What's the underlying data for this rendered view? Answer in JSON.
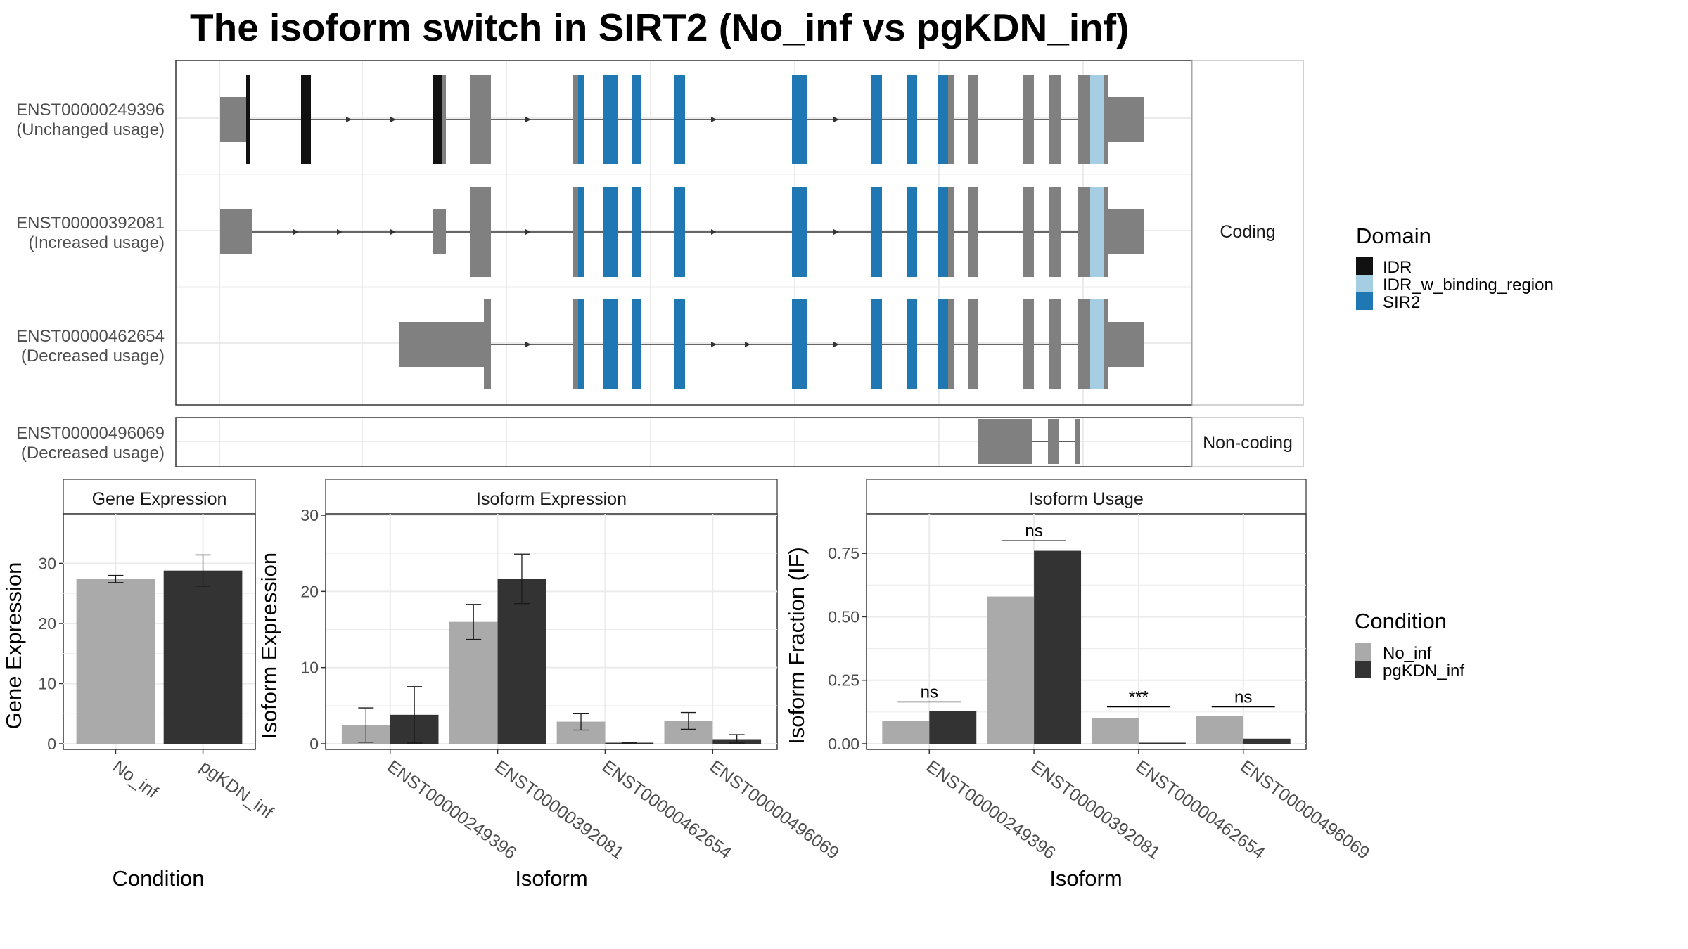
{
  "title": "The isoform switch in SIRT2 (No_inf vs pgKDN_inf)",
  "colors": {
    "exon": "#808080",
    "IDR": "#111111",
    "IDR_w_binding_region": "#a6cee3",
    "SIR2": "#1f78b4",
    "No_inf": "#aaaaaa",
    "pgKDN_inf": "#333333",
    "grid": "#ebebeb"
  },
  "transcripts": {
    "strips": {
      "coding": "Coding",
      "noncoding": "Non-coding"
    },
    "rows": [
      {
        "id": "ENST00000249396",
        "usage": "(Unchanged usage)",
        "group": "coding"
      },
      {
        "id": "ENST00000392081",
        "usage": "(Increased usage)",
        "group": "coding"
      },
      {
        "id": "ENST00000462654",
        "usage": "(Decreased usage)",
        "group": "coding"
      },
      {
        "id": "ENST00000496069",
        "usage": "(Decreased usage)",
        "group": "noncoding"
      }
    ]
  },
  "domain_legend": {
    "title": "Domain",
    "items": [
      {
        "label": "IDR",
        "color": "#111111"
      },
      {
        "label": "IDR_w_binding_region",
        "color": "#a6cee3"
      },
      {
        "label": "SIR2",
        "color": "#1f78b4"
      }
    ]
  },
  "condition_legend": {
    "title": "Condition",
    "items": [
      {
        "label": "No_inf",
        "color": "#aaaaaa"
      },
      {
        "label": "pgKDN_inf",
        "color": "#333333"
      }
    ]
  },
  "chart_data": [
    {
      "type": "bar",
      "title": "Gene Expression",
      "xlabel": "Condition",
      "ylabel": "Gene Expression",
      "ylim": [
        0,
        38
      ],
      "yticks": [
        0,
        10,
        20,
        30
      ],
      "categories": [
        "No_inf",
        "pgKDN_inf"
      ],
      "values": [
        27.4,
        28.8
      ],
      "errors": [
        [
          26.8,
          28.0
        ],
        [
          26.2,
          31.4
        ]
      ]
    },
    {
      "type": "bar",
      "title": "Isoform Expression",
      "xlabel": "Isoform",
      "ylabel": "Isoform Expression",
      "ylim": [
        0,
        30
      ],
      "yticks": [
        0,
        10,
        20,
        30
      ],
      "categories": [
        "ENST00000249396",
        "ENST00000392081",
        "ENST00000462654",
        "ENST00000496069"
      ],
      "series": [
        {
          "name": "No_inf",
          "values": [
            2.4,
            16.0,
            2.9,
            3.0
          ],
          "errors": [
            [
              0.2,
              4.7
            ],
            [
              13.7,
              18.3
            ],
            [
              1.8,
              4.0
            ],
            [
              1.9,
              4.1
            ]
          ]
        },
        {
          "name": "pgKDN_inf",
          "values": [
            3.8,
            21.6,
            0.1,
            0.6
          ],
          "errors": [
            [
              0.1,
              7.5
            ],
            [
              18.4,
              24.9
            ],
            [
              0.0,
              0.2
            ],
            [
              0.1,
              1.2
            ]
          ]
        }
      ]
    },
    {
      "type": "bar",
      "title": "Isoform Usage",
      "xlabel": "Isoform",
      "ylabel": "Isoform Fraction (IF)",
      "ylim": [
        0,
        0.9
      ],
      "yticks": [
        0.0,
        0.25,
        0.5,
        0.75
      ],
      "ytick_labels": [
        "0.00",
        "0.25",
        "0.50",
        "0.75"
      ],
      "categories": [
        "ENST00000249396",
        "ENST00000392081",
        "ENST00000462654",
        "ENST00000496069"
      ],
      "series": [
        {
          "name": "No_inf",
          "values": [
            0.09,
            0.58,
            0.1,
            0.11
          ]
        },
        {
          "name": "pgKDN_inf",
          "values": [
            0.13,
            0.76,
            0.0,
            0.02
          ]
        }
      ],
      "significance": [
        "ns",
        "ns",
        "***",
        "ns"
      ],
      "significance_y": [
        0.165,
        0.8,
        0.145,
        0.145
      ]
    }
  ]
}
